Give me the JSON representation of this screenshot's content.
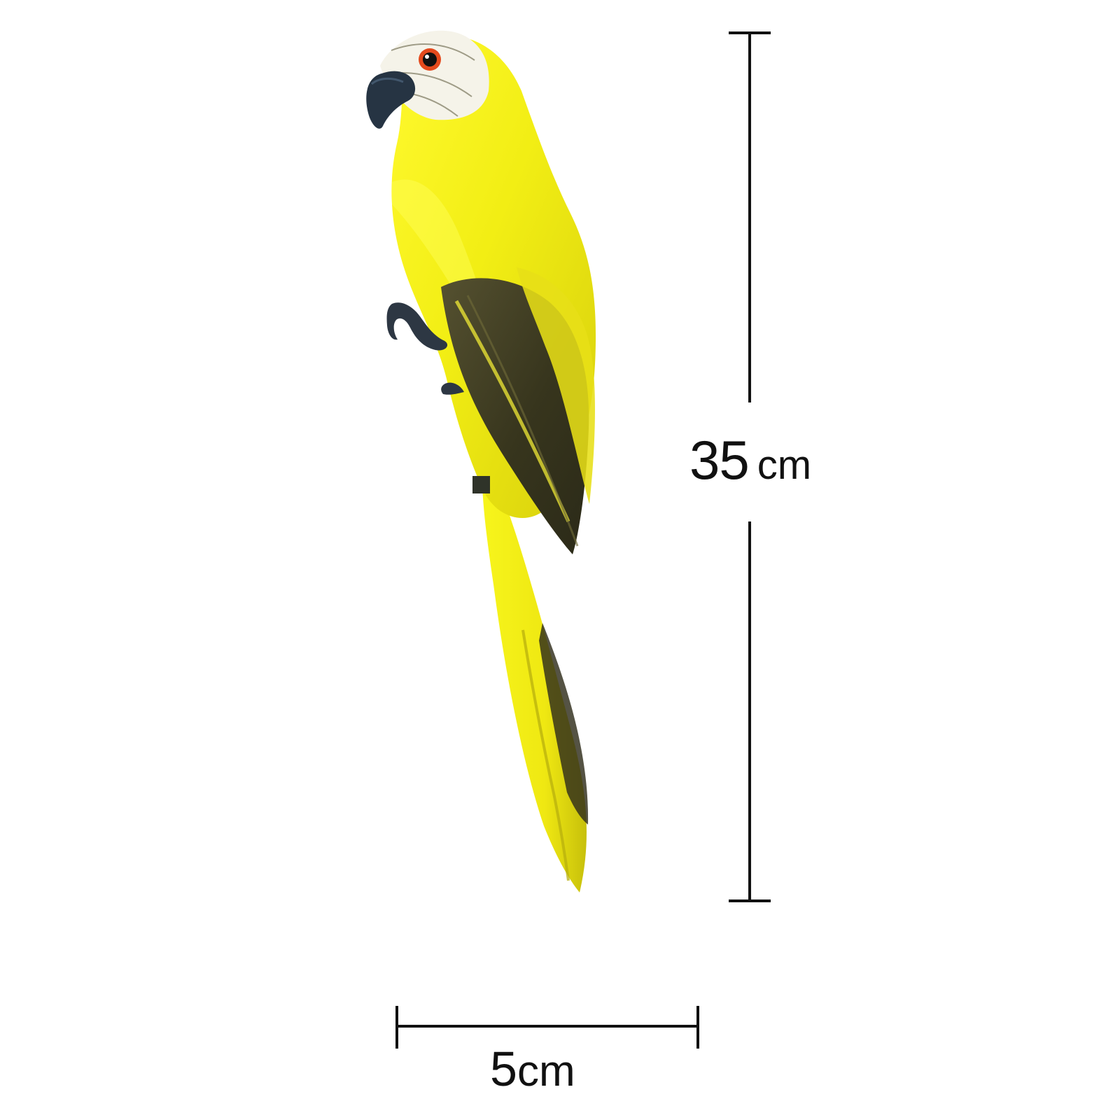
{
  "colors": {
    "background": "#ffffff",
    "feather_yellow": "#f4ef18",
    "feather_shadow": "#c9c010",
    "wing_dark": "#3f3d22",
    "beak": "#263443",
    "eye_ring": "#e44a1d",
    "face_white": "#f5f3e9",
    "measure_line": "#111111"
  },
  "product": {
    "subject": "parrot-icon"
  },
  "dimensions": {
    "height": {
      "value": "35",
      "unit": "cm"
    },
    "width": {
      "value": "5",
      "unit": "cm"
    }
  }
}
